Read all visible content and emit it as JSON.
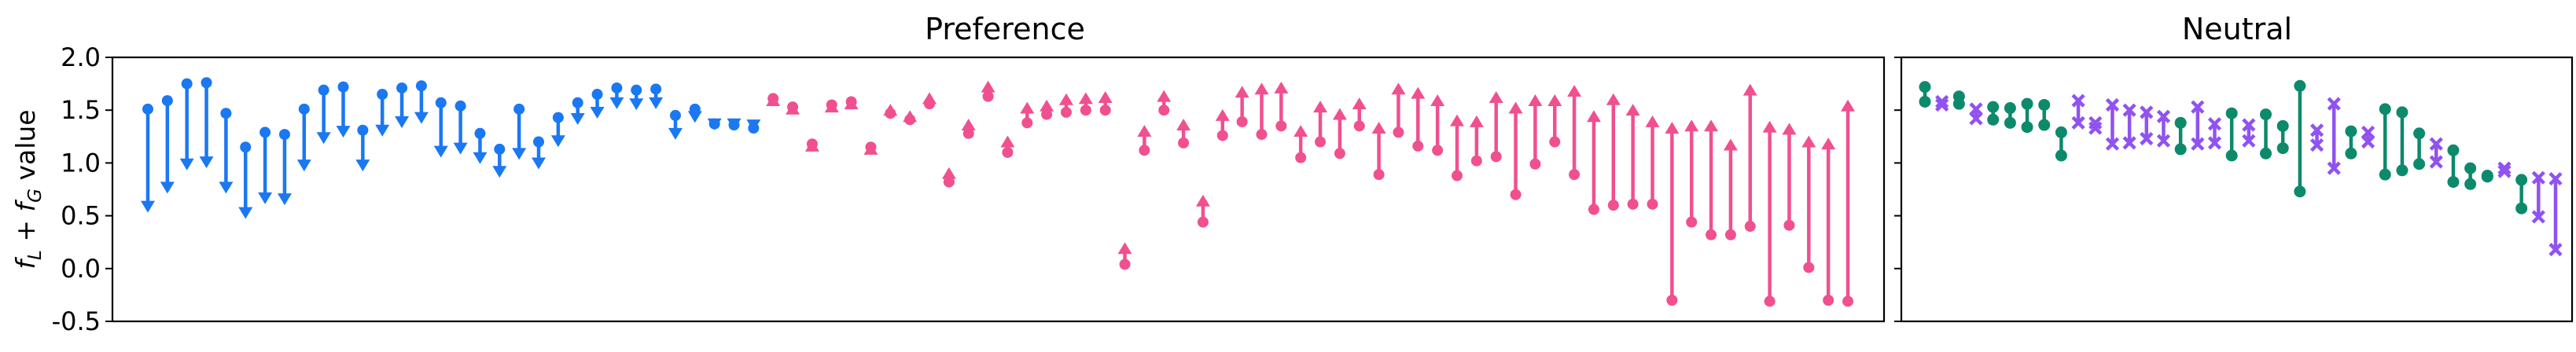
{
  "colors": {
    "preference_down": "#1a78f2",
    "preference_up": "#f0508f",
    "neutral_circle": "#0d8a6b",
    "neutral_x": "#9052f0",
    "axes": "#000000",
    "background": "#ffffff"
  },
  "chart_data": [
    {
      "type": "dumbbell",
      "title": "Preference",
      "ylabel": "f_L + f_G value",
      "ylabel_parts": {
        "f": "f",
        "sub_L": "L",
        "plus": "+",
        "sub_G": "G",
        "word": "value"
      },
      "ylim": [
        -0.5,
        2.0
      ],
      "yticks": [
        "2.0",
        "1.5",
        "1.0",
        "0.5",
        "0.0",
        "-0.5"
      ],
      "ytick_values": [
        2.0,
        1.5,
        1.0,
        0.5,
        0.0,
        -0.5
      ],
      "grid": false,
      "legend": "none",
      "series": [
        {
          "direction": "decrease",
          "marker": "arrow",
          "points": [
            [
              1.51,
              0.53
            ],
            [
              1.59,
              0.71
            ],
            [
              1.75,
              0.93
            ],
            [
              1.76,
              0.95
            ],
            [
              1.47,
              0.71
            ],
            [
              1.15,
              0.47
            ],
            [
              1.29,
              0.61
            ],
            [
              1.27,
              0.6
            ],
            [
              1.51,
              0.92
            ],
            [
              1.69,
              1.18
            ],
            [
              1.72,
              1.24
            ],
            [
              1.31,
              0.92
            ],
            [
              1.65,
              1.25
            ],
            [
              1.71,
              1.33
            ],
            [
              1.73,
              1.37
            ],
            [
              1.57,
              1.05
            ],
            [
              1.54,
              1.08
            ],
            [
              1.28,
              0.99
            ],
            [
              1.13,
              0.86
            ],
            [
              1.51,
              1.03
            ],
            [
              1.2,
              0.94
            ],
            [
              1.43,
              1.15
            ],
            [
              1.57,
              1.36
            ],
            [
              1.65,
              1.42
            ],
            [
              1.71,
              1.51
            ],
            [
              1.69,
              1.5
            ],
            [
              1.7,
              1.51
            ],
            [
              1.45,
              1.22
            ],
            [
              1.51,
              1.38
            ],
            [
              1.37,
              1.31
            ],
            [
              1.36,
              1.31
            ],
            [
              1.33,
              1.3
            ]
          ]
        },
        {
          "direction": "increase",
          "marker": "arrow",
          "points": [
            [
              1.61,
              1.65
            ],
            [
              1.53,
              1.57
            ],
            [
              1.18,
              1.22
            ],
            [
              1.55,
              1.59
            ],
            [
              1.58,
              1.62
            ],
            [
              1.15,
              1.19
            ],
            [
              1.47,
              1.56
            ],
            [
              1.41,
              1.5
            ],
            [
              1.56,
              1.67
            ],
            [
              0.82,
              0.96
            ],
            [
              1.28,
              1.42
            ],
            [
              1.63,
              1.78
            ],
            [
              1.1,
              1.26
            ],
            [
              1.38,
              1.58
            ],
            [
              1.46,
              1.6
            ],
            [
              1.48,
              1.66
            ],
            [
              1.5,
              1.67
            ],
            [
              1.5,
              1.68
            ],
            [
              0.04,
              0.25
            ],
            [
              1.12,
              1.36
            ],
            [
              1.5,
              1.69
            ],
            [
              1.19,
              1.42
            ],
            [
              0.44,
              0.7
            ],
            [
              1.26,
              1.51
            ],
            [
              1.39,
              1.73
            ],
            [
              1.27,
              1.76
            ],
            [
              1.35,
              1.77
            ],
            [
              1.05,
              1.36
            ],
            [
              1.2,
              1.59
            ],
            [
              1.09,
              1.52
            ],
            [
              1.35,
              1.62
            ],
            [
              0.89,
              1.39
            ],
            [
              1.29,
              1.76
            ],
            [
              1.16,
              1.72
            ],
            [
              1.12,
              1.65
            ],
            [
              0.88,
              1.46
            ],
            [
              1.02,
              1.45
            ],
            [
              1.06,
              1.68
            ],
            [
              0.7,
              1.58
            ],
            [
              0.99,
              1.65
            ],
            [
              1.2,
              1.65
            ],
            [
              0.89,
              1.74
            ],
            [
              0.56,
              1.5
            ],
            [
              0.6,
              1.66
            ],
            [
              0.61,
              1.56
            ],
            [
              0.61,
              1.45
            ],
            [
              -0.3,
              1.39
            ],
            [
              0.44,
              1.41
            ],
            [
              0.32,
              1.41
            ],
            [
              0.32,
              1.23
            ],
            [
              0.4,
              1.75
            ],
            [
              -0.31,
              1.4
            ],
            [
              0.41,
              1.38
            ],
            [
              0.01,
              1.26
            ],
            [
              -0.3,
              1.24
            ],
            [
              -0.31,
              1.6
            ]
          ]
        }
      ]
    },
    {
      "type": "dumbbell",
      "title": "Neutral",
      "ylim": [
        -0.5,
        2.0
      ],
      "grid": false,
      "legend": "none",
      "series": [
        {
          "marker": "circle",
          "points": [
            [
              1.72,
              1.58
            ],
            [
              1.63,
              1.56
            ],
            [
              1.53,
              1.41
            ],
            [
              1.52,
              1.38
            ],
            [
              1.56,
              1.34
            ],
            [
              1.55,
              1.36
            ],
            [
              1.29,
              1.07
            ],
            [
              1.38,
              1.13
            ],
            [
              1.47,
              1.07
            ],
            [
              1.46,
              1.09
            ],
            [
              1.35,
              1.14
            ],
            [
              1.73,
              0.73
            ],
            [
              1.3,
              1.09
            ],
            [
              1.51,
              0.89
            ],
            [
              1.48,
              0.93
            ],
            [
              1.28,
              0.99
            ],
            [
              1.12,
              0.82
            ],
            [
              0.95,
              0.8
            ],
            [
              0.87,
              0.88
            ],
            [
              0.84,
              0.57
            ]
          ]
        },
        {
          "marker": "x",
          "points": [
            [
              1.58,
              1.55
            ],
            [
              1.51,
              1.42
            ],
            [
              1.59,
              1.38
            ],
            [
              1.38,
              1.33
            ],
            [
              1.55,
              1.18
            ],
            [
              1.5,
              1.19
            ],
            [
              1.48,
              1.23
            ],
            [
              1.44,
              1.21
            ],
            [
              1.53,
              1.18
            ],
            [
              1.37,
              1.19
            ],
            [
              1.36,
              1.21
            ],
            [
              1.31,
              1.17
            ],
            [
              1.56,
              0.95
            ],
            [
              1.29,
              1.2
            ],
            [
              1.18,
              1.01
            ],
            [
              0.95,
              0.92
            ],
            [
              0.86,
              0.49
            ],
            [
              0.85,
              0.18
            ]
          ]
        }
      ]
    }
  ]
}
